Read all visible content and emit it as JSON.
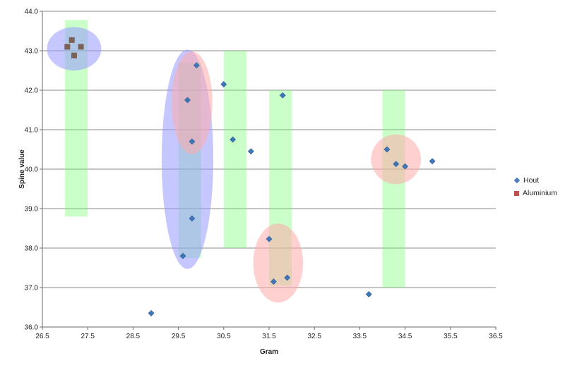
{
  "chart_data": {
    "type": "scatter",
    "title": "",
    "xlabel": "Gram",
    "ylabel": "Spine value",
    "xlim": [
      26.5,
      36.5
    ],
    "ylim": [
      36.0,
      44.0
    ],
    "x_ticks": [
      "26.5",
      "27.5",
      "28.5",
      "29.5",
      "30.5",
      "31.5",
      "32.5",
      "33.5",
      "34.5",
      "35.5",
      "36.5"
    ],
    "y_ticks": [
      "36.0",
      "37.0",
      "38.0",
      "39.0",
      "40.0",
      "41.0",
      "42.0",
      "43.0",
      "44.0"
    ],
    "grid": "horizontal",
    "legend_position": "right",
    "series": [
      {
        "name": "Hout",
        "marker": "diamond",
        "color": "#4a7cbf",
        "points": [
          {
            "x": 28.9,
            "y": 36.35
          },
          {
            "x": 29.6,
            "y": 37.8
          },
          {
            "x": 29.8,
            "y": 38.75
          },
          {
            "x": 29.8,
            "y": 40.7
          },
          {
            "x": 29.7,
            "y": 41.75
          },
          {
            "x": 29.9,
            "y": 42.63
          },
          {
            "x": 30.5,
            "y": 42.15
          },
          {
            "x": 30.7,
            "y": 40.75
          },
          {
            "x": 31.1,
            "y": 40.45
          },
          {
            "x": 31.8,
            "y": 41.87
          },
          {
            "x": 31.5,
            "y": 38.23
          },
          {
            "x": 31.6,
            "y": 37.15
          },
          {
            "x": 31.9,
            "y": 37.25
          },
          {
            "x": 33.7,
            "y": 36.83
          },
          {
            "x": 34.1,
            "y": 40.5
          },
          {
            "x": 34.3,
            "y": 40.13
          },
          {
            "x": 34.5,
            "y": 40.07
          },
          {
            "x": 35.1,
            "y": 40.2
          }
        ]
      },
      {
        "name": "Aluminium",
        "marker": "square",
        "color": "#c0504d",
        "points": [
          {
            "x": 27.15,
            "y": 43.27
          },
          {
            "x": 27.05,
            "y": 43.1
          },
          {
            "x": 27.35,
            "y": 43.1
          },
          {
            "x": 27.2,
            "y": 42.88
          }
        ]
      }
    ],
    "highlight_bands": [
      {
        "x0": 27.0,
        "x1": 27.5,
        "y0": 38.8,
        "y1": 43.78
      },
      {
        "x0": 29.5,
        "x1": 30.0,
        "y0": 37.75,
        "y1": 42.7
      },
      {
        "x0": 30.5,
        "x1": 31.0,
        "y0": 38.0,
        "y1": 43.0
      },
      {
        "x0": 31.5,
        "x1": 32.0,
        "y0": 37.05,
        "y1": 42.0
      },
      {
        "x0": 34.0,
        "x1": 34.5,
        "y0": 37.0,
        "y1": 42.0
      }
    ],
    "highlight_ellipses": [
      {
        "cx": 27.2,
        "cy": 43.05,
        "rx": 0.6,
        "ry": 0.55,
        "color": "#9999ff"
      },
      {
        "cx": 29.7,
        "cy": 40.25,
        "rx": 0.57,
        "ry": 2.78,
        "color": "#9999ff"
      },
      {
        "cx": 29.8,
        "cy": 41.68,
        "rx": 0.45,
        "ry": 1.3,
        "color": "#ffaaaa"
      },
      {
        "cx": 31.7,
        "cy": 37.62,
        "rx": 0.55,
        "ry": 1.0,
        "color": "#ffaaaa"
      },
      {
        "cx": 34.3,
        "cy": 40.25,
        "rx": 0.55,
        "ry": 0.63,
        "color": "#ffaaaa"
      }
    ]
  }
}
